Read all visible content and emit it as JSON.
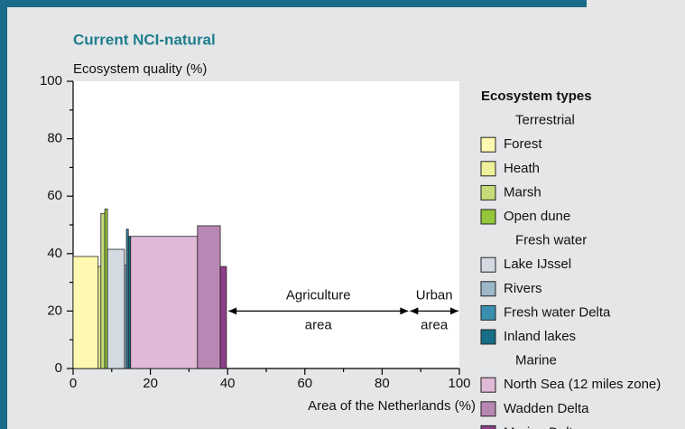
{
  "chart_data": {
    "type": "variable-width-bar",
    "title": "Current NCI-natural",
    "y_label": "Ecosystem quality (%)",
    "x_label": "Area of the Netherlands (%)",
    "xlim": [
      0,
      100
    ],
    "ylim": [
      0,
      100
    ],
    "xticks": [
      0,
      20,
      40,
      60,
      80,
      100
    ],
    "yticks": [
      0,
      20,
      40,
      60,
      80,
      100
    ],
    "minor_xticks": [
      10,
      30,
      50,
      70,
      90
    ],
    "minor_yticks": [
      10,
      30,
      50,
      70,
      90
    ],
    "legend_title": "Ecosystem types",
    "groups": [
      {
        "name": "Terrestrial",
        "series": [
          {
            "name": "Forest",
            "color": "#fff8b0",
            "x0": 0,
            "x1": 6.5,
            "value": 39
          },
          {
            "name": "Heath",
            "color": "#eef09a",
            "x0": 6.5,
            "x1": 7.2,
            "value": 35.5
          },
          {
            "name": "Marsh",
            "color": "#c6dc78",
            "x0": 7.2,
            "x1": 8.2,
            "value": 54
          },
          {
            "name": "Open dune",
            "color": "#93c63a",
            "x0": 8.2,
            "x1": 8.9,
            "value": 55.5
          }
        ]
      },
      {
        "name": "Fresh water",
        "series": [
          {
            "name": "Lake IJssel",
            "color": "#d3dae1",
            "x0": 8.9,
            "x1": 13.3,
            "value": 41.5
          },
          {
            "name": "Rivers",
            "color": "#9db8c8",
            "x0": 13.3,
            "x1": 13.8,
            "value": 36
          },
          {
            "name": "Fresh water Delta",
            "color": "#3a8fb0",
            "x0": 13.8,
            "x1": 14.3,
            "value": 48.5
          },
          {
            "name": "Inland lakes",
            "color": "#166f86",
            "x0": 14.3,
            "x1": 14.9,
            "value": 46
          }
        ]
      },
      {
        "name": "Marine",
        "series": [
          {
            "name": "North Sea (12 miles zone)",
            "color": "#e0b9d6",
            "x0": 14.9,
            "x1": 32.2,
            "value": 46
          },
          {
            "name": "Wadden Delta",
            "color": "#b987b3",
            "x0": 32.2,
            "x1": 38.1,
            "value": 49.7
          },
          {
            "name": "Marine Delta",
            "color": "#8e3e87",
            "x0": 38.1,
            "x1": 39.7,
            "value": 35.5
          }
        ]
      }
    ],
    "annotations": [
      {
        "text": [
          "Agriculture",
          "area"
        ],
        "x": [
          40,
          87
        ],
        "y": 20
      },
      {
        "text": [
          "Urban",
          "area"
        ],
        "x": [
          87,
          100
        ],
        "y": 20
      }
    ]
  }
}
